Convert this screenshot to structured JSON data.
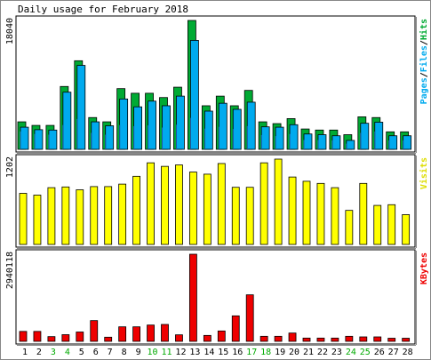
{
  "chart_data": {
    "type": "bar",
    "title": "Daily usage for February 2018",
    "categories": [
      "1",
      "2",
      "3",
      "4",
      "5",
      "6",
      "7",
      "8",
      "9",
      "10",
      "11",
      "12",
      "13",
      "14",
      "15",
      "16",
      "17",
      "18",
      "19",
      "20",
      "21",
      "22",
      "23",
      "24",
      "25",
      "26",
      "27",
      "28"
    ],
    "weekend_days": [
      "3",
      "4",
      "10",
      "11",
      "17",
      "18",
      "24",
      "25"
    ],
    "colors": {
      "hits": "#00aa33",
      "files": "#00aaee",
      "pages": "#00aaee",
      "visits": "#ffff00",
      "kbytes": "#ee0000",
      "weekday_label": "#000000",
      "weekend_label": "#00aa00",
      "frame_bg": "#ffffff",
      "border": "#000000"
    },
    "panels": [
      {
        "id": "usage",
        "max_label": "18040",
        "max": 18040,
        "legend": [
          {
            "text": "Pages",
            "color": "#00aaee"
          },
          {
            "text": "/",
            "color": "#000000"
          },
          {
            "text": "Files",
            "color": "#00aaee"
          },
          {
            "text": "/",
            "color": "#000000"
          },
          {
            "text": "Hits",
            "color": "#00aa33"
          }
        ],
        "series": [
          {
            "name": "Hits",
            "values": [
              3850,
              3350,
              3350,
              8800,
              12400,
              4450,
              3850,
              8500,
              7850,
              7850,
              7250,
              8700,
              18040,
              6100,
              7450,
              6100,
              8250,
              3850,
              3600,
              4300,
              2850,
              2700,
              2700,
              2050,
              4550,
              4450,
              2450,
              2450
            ]
          },
          {
            "name": "Files",
            "values": [
              3100,
              2750,
              2700,
              8000,
              11750,
              3850,
              3300,
              7050,
              5950,
              6750,
              6100,
              7450,
              15250,
              5350,
              6450,
              5600,
              6600,
              3150,
              3100,
              3450,
              2150,
              2050,
              1900,
              1250,
              3650,
              3800,
              1900,
              1900
            ]
          },
          {
            "name": "Pages",
            "values": [
              2500,
              2150,
              2050,
              3400,
              4250,
              2300,
              2050,
              3400,
              3250,
              3350,
              3050,
              3450,
              4400,
              2900,
              3150,
              2850,
              3250,
              2000,
              1850,
              2150,
              1300,
              1300,
              1250,
              800,
              2300,
              2500,
              1250,
              1250
            ]
          }
        ]
      },
      {
        "id": "visits",
        "max_label": "1202",
        "max": 1202,
        "legend": [
          {
            "text": "Visits",
            "color": "#dddd00"
          }
        ],
        "series": [
          {
            "name": "Visits",
            "values": [
              720,
              695,
              800,
              810,
              770,
              815,
              815,
              850,
              960,
              1150,
              1100,
              1120,
              1020,
              990,
              1140,
              805,
              805,
              1150,
              1202,
              950,
              890,
              860,
              800,
              480,
              860,
              550,
              560,
              420
            ]
          }
        ]
      },
      {
        "id": "kbytes",
        "max_label": "2940118",
        "max": 2940118,
        "legend": [
          {
            "text": "KBytes",
            "color": "#ee0000"
          }
        ],
        "series": [
          {
            "name": "KBytes",
            "values": [
              335000,
              335000,
              160000,
              225000,
              315000,
              700000,
              140000,
              490000,
              490000,
              550000,
              570000,
              220000,
              2940118,
              200000,
              350000,
              860000,
              1570000,
              170000,
              170000,
              280000,
              110000,
              110000,
              110000,
              170000,
              150000,
              150000,
              105000,
              105000
            ]
          }
        ]
      }
    ]
  }
}
